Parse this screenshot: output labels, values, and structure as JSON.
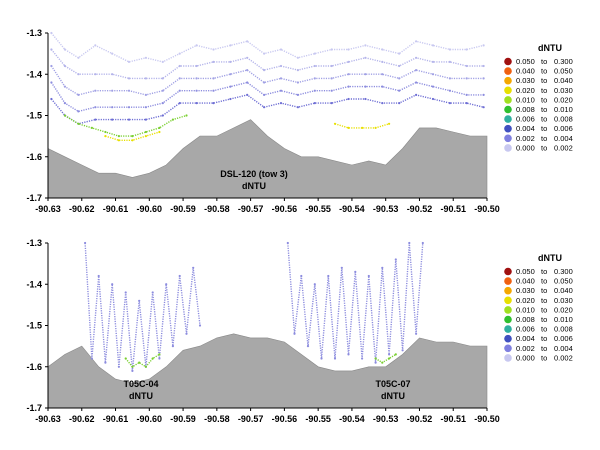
{
  "chart_data": [
    {
      "type": "scatter",
      "panel": "top",
      "xlim": [
        -90.63,
        -90.5
      ],
      "ylim": [
        -1.7,
        -1.3
      ],
      "x_ticks": [
        "-90.63",
        "-90.62",
        "-90.61",
        "-90.60",
        "-90.59",
        "-90.58",
        "-90.57",
        "-90.56",
        "-90.55",
        "-90.54",
        "-90.53",
        "-90.52",
        "-90.51",
        "-90.50"
      ],
      "y_ticks": [
        "-1.3",
        "-1.4",
        "-1.5",
        "-1.6",
        "-1.7"
      ],
      "legend_title": "dNTU",
      "legend_placement": "right",
      "annotations": [
        "DSL-120 (tow 3)",
        "dNTU"
      ],
      "bathymetry": {
        "x": [
          -90.63,
          -90.625,
          -90.62,
          -90.615,
          -90.61,
          -90.605,
          -90.6,
          -90.595,
          -90.59,
          -90.585,
          -90.58,
          -90.575,
          -90.57,
          -90.565,
          -90.56,
          -90.555,
          -90.55,
          -90.545,
          -90.54,
          -90.535,
          -90.53,
          -90.525,
          -90.52,
          -90.515,
          -90.51,
          -90.505,
          -90.5
        ],
        "y": [
          -1.58,
          -1.6,
          -1.62,
          -1.64,
          -1.64,
          -1.65,
          -1.64,
          -1.62,
          -1.58,
          -1.55,
          -1.55,
          -1.53,
          -1.51,
          -1.55,
          -1.58,
          -1.6,
          -1.6,
          -1.61,
          -1.62,
          -1.61,
          -1.62,
          -1.58,
          -1.53,
          -1.53,
          -1.54,
          -1.55,
          -1.55
        ]
      },
      "series": [
        {
          "x": [
            -90.629,
            -90.625,
            -90.621,
            -90.616,
            -90.611,
            -90.606,
            -90.601,
            -90.596,
            -90.591,
            -90.586,
            -90.581,
            -90.576,
            -90.571,
            -90.566,
            -90.561,
            -90.556,
            -90.551,
            -90.546,
            -90.541,
            -90.536,
            -90.531,
            -90.526,
            -90.521,
            -90.516,
            -90.511,
            -90.506,
            -90.501
          ],
          "y": [
            -1.3,
            -1.34,
            -1.36,
            -1.33,
            -1.35,
            -1.37,
            -1.36,
            -1.37,
            -1.35,
            -1.33,
            -1.34,
            -1.33,
            -1.32,
            -1.35,
            -1.34,
            -1.36,
            -1.35,
            -1.34,
            -1.34,
            -1.33,
            -1.34,
            -1.35,
            -1.32,
            -1.33,
            -1.34,
            -1.34,
            -1.33
          ],
          "color": "#c8c8f0"
        },
        {
          "x": [
            -90.629,
            -90.625,
            -90.621,
            -90.616,
            -90.611,
            -90.606,
            -90.601,
            -90.596,
            -90.591,
            -90.586,
            -90.581,
            -90.576,
            -90.571,
            -90.566,
            -90.561,
            -90.556,
            -90.551,
            -90.546,
            -90.541,
            -90.536,
            -90.531,
            -90.526,
            -90.521,
            -90.516,
            -90.511,
            -90.506,
            -90.501
          ],
          "y": [
            -1.34,
            -1.38,
            -1.4,
            -1.4,
            -1.4,
            -1.41,
            -1.41,
            -1.41,
            -1.38,
            -1.38,
            -1.37,
            -1.37,
            -1.36,
            -1.39,
            -1.38,
            -1.39,
            -1.38,
            -1.38,
            -1.37,
            -1.36,
            -1.37,
            -1.38,
            -1.36,
            -1.37,
            -1.37,
            -1.38,
            -1.38
          ],
          "color": "#b4b4ea"
        },
        {
          "x": [
            -90.629,
            -90.625,
            -90.621,
            -90.616,
            -90.611,
            -90.606,
            -90.601,
            -90.596,
            -90.591,
            -90.586,
            -90.581,
            -90.576,
            -90.571,
            -90.566,
            -90.561,
            -90.556,
            -90.551,
            -90.546,
            -90.541,
            -90.536,
            -90.531,
            -90.526,
            -90.521,
            -90.516,
            -90.511,
            -90.506,
            -90.501
          ],
          "y": [
            -1.38,
            -1.43,
            -1.45,
            -1.44,
            -1.44,
            -1.44,
            -1.45,
            -1.44,
            -1.41,
            -1.41,
            -1.41,
            -1.4,
            -1.39,
            -1.42,
            -1.41,
            -1.42,
            -1.41,
            -1.41,
            -1.4,
            -1.4,
            -1.4,
            -1.41,
            -1.39,
            -1.4,
            -1.41,
            -1.41,
            -1.41
          ],
          "color": "#a0a0e4"
        },
        {
          "x": [
            -90.629,
            -90.625,
            -90.621,
            -90.616,
            -90.611,
            -90.606,
            -90.601,
            -90.596,
            -90.591,
            -90.586,
            -90.581,
            -90.576,
            -90.571,
            -90.566,
            -90.561,
            -90.556,
            -90.551,
            -90.546,
            -90.541,
            -90.536,
            -90.531,
            -90.526,
            -90.521,
            -90.516,
            -90.511,
            -90.506,
            -90.501
          ],
          "y": [
            -1.42,
            -1.47,
            -1.49,
            -1.48,
            -1.48,
            -1.48,
            -1.48,
            -1.47,
            -1.44,
            -1.44,
            -1.44,
            -1.43,
            -1.42,
            -1.45,
            -1.44,
            -1.45,
            -1.44,
            -1.44,
            -1.43,
            -1.43,
            -1.43,
            -1.44,
            -1.42,
            -1.43,
            -1.44,
            -1.45,
            -1.45
          ],
          "color": "#8c8cde"
        },
        {
          "x": [
            -90.629,
            -90.625,
            -90.621,
            -90.616,
            -90.611,
            -90.606,
            -90.601,
            -90.596,
            -90.591,
            -90.586,
            -90.581,
            -90.576,
            -90.571,
            -90.566,
            -90.561,
            -90.556,
            -90.551,
            -90.546,
            -90.541,
            -90.536,
            -90.531,
            -90.526,
            -90.521,
            -90.516,
            -90.511,
            -90.506,
            -90.501
          ],
          "y": [
            -1.46,
            -1.5,
            -1.52,
            -1.51,
            -1.51,
            -1.51,
            -1.51,
            -1.5,
            -1.47,
            -1.47,
            -1.47,
            -1.46,
            -1.45,
            -1.48,
            -1.47,
            -1.48,
            -1.47,
            -1.47,
            -1.46,
            -1.46,
            -1.47,
            -1.47,
            -1.45,
            -1.46,
            -1.47,
            -1.47,
            -1.48
          ],
          "color": "#6e6ed4"
        },
        {
          "x": [
            -90.625,
            -90.621,
            -90.617,
            -90.613,
            -90.609,
            -90.605,
            -90.601,
            -90.597,
            -90.593,
            -90.589
          ],
          "y": [
            -1.5,
            -1.52,
            -1.53,
            -1.54,
            -1.55,
            -1.55,
            -1.54,
            -1.53,
            -1.51,
            -1.5
          ],
          "color": "#7ad030"
        },
        {
          "x": [
            -90.613,
            -90.609,
            -90.605,
            -90.601,
            -90.597
          ],
          "y": [
            -1.55,
            -1.56,
            -1.56,
            -1.55,
            -1.54
          ],
          "color": "#e8e000"
        },
        {
          "x": [
            -90.545,
            -90.541,
            -90.537,
            -90.533,
            -90.529
          ],
          "y": [
            -1.52,
            -1.53,
            -1.53,
            -1.53,
            -1.52
          ],
          "color": "#e8e000"
        }
      ]
    },
    {
      "type": "scatter",
      "panel": "bottom",
      "xlim": [
        -90.63,
        -90.5
      ],
      "ylim": [
        -1.7,
        -1.3
      ],
      "x_ticks": [
        "-90.63",
        "-90.62",
        "-90.61",
        "-90.60",
        "-90.59",
        "-90.58",
        "-90.57",
        "-90.56",
        "-90.55",
        "-90.54",
        "-90.53",
        "-90.52",
        "-90.51",
        "-90.50"
      ],
      "y_ticks": [
        "-1.3",
        "-1.4",
        "-1.5",
        "-1.6",
        "-1.7"
      ],
      "legend_title": "dNTU",
      "legend_placement": "right",
      "annotations": [
        "T05C-04",
        "dNTU",
        "T05C-07",
        "dNTU"
      ],
      "bathymetry": {
        "x": [
          -90.63,
          -90.625,
          -90.62,
          -90.615,
          -90.61,
          -90.605,
          -90.6,
          -90.595,
          -90.59,
          -90.585,
          -90.58,
          -90.575,
          -90.57,
          -90.565,
          -90.56,
          -90.555,
          -90.55,
          -90.545,
          -90.54,
          -90.535,
          -90.53,
          -90.525,
          -90.52,
          -90.515,
          -90.51,
          -90.505,
          -90.5
        ],
        "y": [
          -1.6,
          -1.57,
          -1.55,
          -1.6,
          -1.63,
          -1.64,
          -1.63,
          -1.6,
          -1.56,
          -1.55,
          -1.53,
          -1.52,
          -1.53,
          -1.53,
          -1.54,
          -1.57,
          -1.6,
          -1.61,
          -1.61,
          -1.6,
          -1.6,
          -1.57,
          -1.53,
          -1.54,
          -1.54,
          -1.55,
          -1.55
        ]
      },
      "series": [
        {
          "x": [
            -90.619,
            -90.617,
            -90.615,
            -90.613,
            -90.611,
            -90.609,
            -90.607,
            -90.605,
            -90.603,
            -90.601,
            -90.599,
            -90.597,
            -90.595,
            -90.593,
            -90.591,
            -90.589,
            -90.587,
            -90.585
          ],
          "y": [
            -1.3,
            -1.58,
            -1.38,
            -1.59,
            -1.4,
            -1.6,
            -1.42,
            -1.61,
            -1.44,
            -1.6,
            -1.42,
            -1.58,
            -1.4,
            -1.55,
            -1.38,
            -1.52,
            -1.36,
            -1.5
          ],
          "color": "#8c8cde"
        },
        {
          "x": [
            -90.559,
            -90.557,
            -90.555,
            -90.553,
            -90.551,
            -90.549,
            -90.547,
            -90.545,
            -90.543,
            -90.541,
            -90.539,
            -90.537,
            -90.535,
            -90.533,
            -90.531,
            -90.529,
            -90.527,
            -90.525,
            -90.523,
            -90.521,
            -90.519
          ],
          "y": [
            -1.3,
            -1.52,
            -1.38,
            -1.55,
            -1.4,
            -1.58,
            -1.38,
            -1.58,
            -1.36,
            -1.57,
            -1.37,
            -1.58,
            -1.38,
            -1.59,
            -1.36,
            -1.57,
            -1.34,
            -1.56,
            -1.3,
            -1.52,
            -1.3
          ],
          "color": "#8c8cde"
        },
        {
          "x": [
            -90.607,
            -90.605,
            -90.603,
            -90.601,
            -90.599,
            -90.597
          ],
          "y": [
            -1.58,
            -1.6,
            -1.59,
            -1.6,
            -1.58,
            -1.57
          ],
          "color": "#7ad030"
        },
        {
          "x": [
            -90.533,
            -90.531,
            -90.529,
            -90.527
          ],
          "y": [
            -1.58,
            -1.59,
            -1.58,
            -1.57
          ],
          "color": "#7ad030"
        }
      ]
    }
  ],
  "legend": {
    "title": "dNTU",
    "items": [
      {
        "lo": "0.050",
        "to": "to",
        "hi": "0.300",
        "color": "#a01010"
      },
      {
        "lo": "0.040",
        "to": "to",
        "hi": "0.050",
        "color": "#f06010"
      },
      {
        "lo": "0.030",
        "to": "to",
        "hi": "0.040",
        "color": "#f5a800"
      },
      {
        "lo": "0.020",
        "to": "to",
        "hi": "0.030",
        "color": "#e8e000"
      },
      {
        "lo": "0.010",
        "to": "to",
        "hi": "0.020",
        "color": "#a0e020"
      },
      {
        "lo": "0.008",
        "to": "to",
        "hi": "0.010",
        "color": "#30c030"
      },
      {
        "lo": "0.006",
        "to": "to",
        "hi": "0.008",
        "color": "#30b0a0"
      },
      {
        "lo": "0.004",
        "to": "to",
        "hi": "0.006",
        "color": "#4050c0"
      },
      {
        "lo": "0.002",
        "to": "to",
        "hi": "0.004",
        "color": "#8080e0"
      },
      {
        "lo": "0.000",
        "to": "to",
        "hi": "0.002",
        "color": "#c8c8f0"
      }
    ]
  },
  "colors": {
    "bathymetry_fill": "#a8a8a8",
    "axis": "#000000"
  }
}
